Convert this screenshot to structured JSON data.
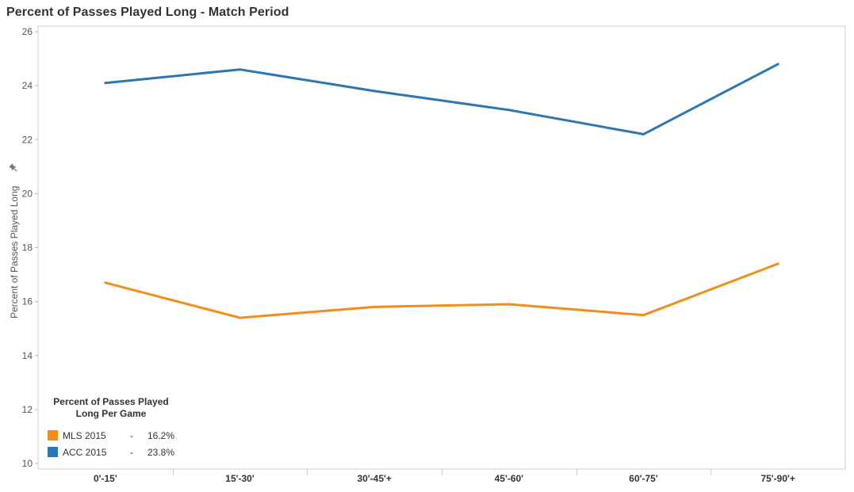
{
  "chart_data": {
    "type": "line",
    "title": "Percent of Passes Played Long - Match Period",
    "ylabel": "Percent of Passes Played Long",
    "xlabel": "",
    "categories": [
      "0'-15'",
      "15'-30'",
      "30'-45'+",
      "45'-60'",
      "60'-75'",
      "75'-90'+"
    ],
    "ylim": [
      10,
      26
    ],
    "yticks": [
      10,
      12,
      14,
      16,
      18,
      20,
      22,
      24,
      26
    ],
    "grid": false,
    "legend_position": "bottom-left",
    "legend_title": "Percent of Passes Played Long Per Game",
    "series": [
      {
        "name": "MLS 2015",
        "color": "#f28e1c",
        "values": [
          16.7,
          15.4,
          15.8,
          15.9,
          15.5,
          17.4
        ],
        "legend_dash": "-",
        "legend_value": "16.2%"
      },
      {
        "name": "ACC 2015",
        "color": "#2c77b3",
        "values": [
          24.1,
          24.6,
          23.8,
          23.1,
          22.2,
          24.8
        ],
        "legend_dash": "-",
        "legend_value": "23.8%"
      }
    ]
  }
}
